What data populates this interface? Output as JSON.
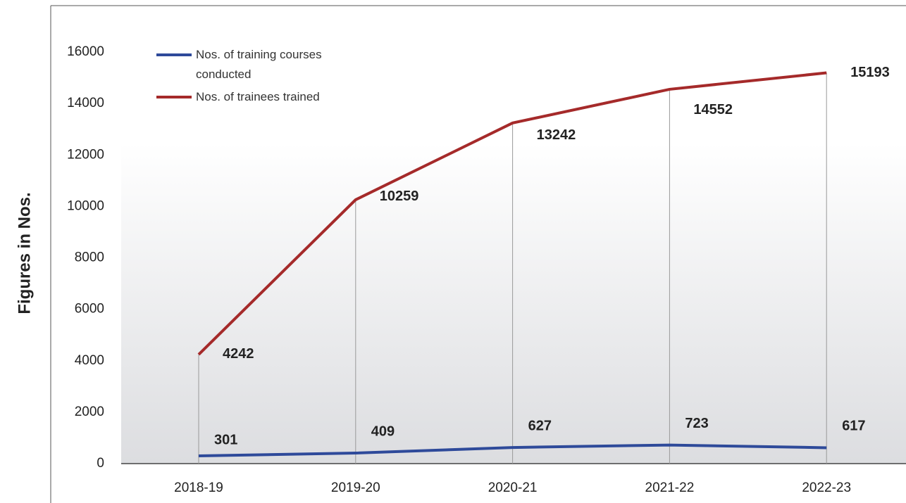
{
  "chart_data": {
    "type": "line",
    "y_label": "Figures in Nos.",
    "categories": [
      "2018-19",
      "2019-20",
      "2020-21",
      "2021-22",
      "2022-23"
    ],
    "series": [
      {
        "name": "Nos. of training courses conducted",
        "color": "#2e4a9a",
        "values": [
          301,
          409,
          627,
          723,
          617
        ]
      },
      {
        "name": "Nos. of trainees trained",
        "color": "#a52a2a",
        "values": [
          4242,
          10259,
          13242,
          14552,
          15193
        ]
      }
    ],
    "ylim": [
      0,
      16000
    ],
    "yticks": [
      0,
      2000,
      4000,
      6000,
      8000,
      10000,
      12000,
      14000,
      16000
    ],
    "legend": "upper left"
  }
}
